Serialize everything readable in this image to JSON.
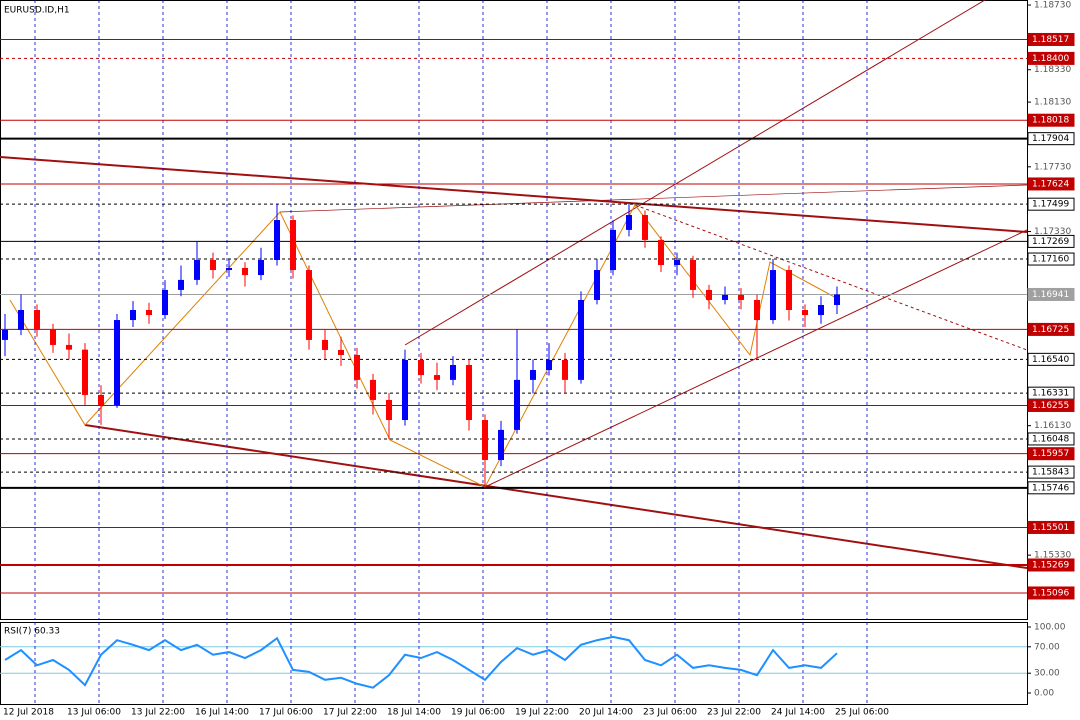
{
  "chart_data": [
    {
      "type": "candlestick",
      "title": "EURUSD.ID,H1",
      "open": [
        1.1666,
        1.16722,
        1.16845,
        1.16722,
        1.16629,
        1.166,
        1.1632,
        1.16258,
        1.16783,
        1.16845,
        1.16814,
        1.16969,
        1.17031,
        1.17154,
        1.17092,
        1.17105,
        1.17061,
        1.17154,
        1.17401,
        1.17092,
        1.1666,
        1.16598,
        1.16567,
        1.16413,
        1.16289,
        1.16165,
        1.16536,
        1.16443,
        1.16413,
        1.16505,
        1.16165,
        1.15918,
        1.16104,
        1.16413,
        1.16474,
        1.16536,
        1.16413,
        1.16907,
        1.17092,
        1.1734,
        1.17432,
        1.17278,
        1.17123,
        1.17154,
        1.16969,
        1.16907,
        1.16938,
        1.16907,
        1.16783,
        1.17092,
        1.16845,
        1.16814,
        1.16876
      ],
      "high": [
        1.1682,
        1.16941,
        1.1688,
        1.1676,
        1.167,
        1.1664,
        1.1638,
        1.1682,
        1.169,
        1.1689,
        1.1703,
        1.1712,
        1.17269,
        1.172,
        1.1716,
        1.1714,
        1.1723,
        1.17499,
        1.1743,
        1.1712,
        1.16725,
        1.1668,
        1.1661,
        1.1645,
        1.16331,
        1.166,
        1.1658,
        1.1652,
        1.1656,
        1.1654,
        1.162,
        1.1616,
        1.16725,
        1.1654,
        1.1664,
        1.1658,
        1.1696,
        1.1716,
        1.174,
        1.17499,
        1.1746,
        1.173,
        1.172,
        1.1718,
        1.17,
        1.1699,
        1.1698,
        1.1694,
        1.1716,
        1.1712,
        1.1688,
        1.1693,
        1.1699
      ],
      "low": [
        1.1656,
        1.1669,
        1.1668,
        1.1658,
        1.1654,
        1.16255,
        1.16135,
        1.1624,
        1.1674,
        1.1676,
        1.1679,
        1.1693,
        1.17,
        1.1704,
        1.1705,
        1.1699,
        1.1703,
        1.1712,
        1.1704,
        1.166,
        1.1654,
        1.165,
        1.1636,
        1.162,
        1.16048,
        1.1613,
        1.1639,
        1.1635,
        1.1638,
        1.161,
        1.15746,
        1.1588,
        1.1608,
        1.1633,
        1.1644,
        1.16331,
        1.1639,
        1.1688,
        1.1706,
        1.173,
        1.1723,
        1.1708,
        1.1706,
        1.1692,
        1.1685,
        1.1688,
        1.1685,
        1.1654,
        1.1676,
        1.1678,
        1.1674,
        1.1676,
        1.1682
      ],
      "close": [
        1.16722,
        1.16845,
        1.16722,
        1.16629,
        1.166,
        1.1632,
        1.16258,
        1.16783,
        1.16845,
        1.16814,
        1.16969,
        1.17031,
        1.17154,
        1.17092,
        1.17105,
        1.17061,
        1.17154,
        1.17401,
        1.17092,
        1.1666,
        1.16598,
        1.16567,
        1.16413,
        1.16289,
        1.16165,
        1.16536,
        1.16443,
        1.16413,
        1.16505,
        1.16165,
        1.15918,
        1.16104,
        1.16413,
        1.16474,
        1.16536,
        1.16413,
        1.16907,
        1.17092,
        1.1734,
        1.17432,
        1.17278,
        1.17123,
        1.17154,
        1.16969,
        1.16907,
        1.16938,
        1.16907,
        1.16783,
        1.17092,
        1.16845,
        1.16814,
        1.16876,
        1.16941
      ],
      "up_color": "#0000ff",
      "down_color": "#ff0000",
      "ylim": [
        1.14929,
        1.18761
      ],
      "yticks": [
        {
          "value": 1.1873,
          "label": "1.18730"
        },
        {
          "value": 1.1833,
          "label": "1.18330"
        },
        {
          "value": 1.1813,
          "label": "1.18130"
        },
        {
          "value": 1.1773,
          "label": "1.17730"
        },
        {
          "value": 1.1733,
          "label": "1.17330"
        },
        {
          "value": 1.1613,
          "label": "1.16130"
        },
        {
          "value": 1.1533,
          "label": "1.15330"
        }
      ],
      "levels": [
        {
          "value": 1.18517,
          "label": "1.18517",
          "color": "#c00000",
          "style": "solid"
        },
        {
          "value": 1.184,
          "label": "1.18400",
          "color": "#c00000",
          "style": "dashed"
        },
        {
          "value": 1.18018,
          "label": "1.18018",
          "color": "#c00000",
          "style": "solid"
        },
        {
          "value": 1.17904,
          "label": "1.17904",
          "color": "#000000",
          "style": "thick"
        },
        {
          "value": 1.17624,
          "label": "1.17624",
          "color": "#c00000",
          "style": "solid"
        },
        {
          "value": 1.17499,
          "label": "1.17499",
          "color": "#000000",
          "style": "dashed"
        },
        {
          "value": 1.17269,
          "label": "1.17269",
          "color": "#000000",
          "style": "solid"
        },
        {
          "value": 1.1716,
          "label": "1.17160",
          "color": "#000000",
          "style": "dashed"
        },
        {
          "value": 1.16941,
          "label": "1.16941",
          "color": "#a0a0a0",
          "style": "solid"
        },
        {
          "value": 1.16725,
          "label": "1.16725",
          "color": "#c00000",
          "style": "solid"
        },
        {
          "value": 1.1654,
          "label": "1.16540",
          "color": "#000000",
          "style": "dashed"
        },
        {
          "value": 1.16331,
          "label": "1.16331",
          "color": "#000000",
          "style": "dashed"
        },
        {
          "value": 1.16255,
          "label": "1.16255",
          "color": "#c00000",
          "style": "solid"
        },
        {
          "value": 1.16048,
          "label": "1.16048",
          "color": "#000000",
          "style": "dashed"
        },
        {
          "value": 1.15957,
          "label": "1.15957",
          "color": "#c00000",
          "style": "solid"
        },
        {
          "value": 1.15843,
          "label": "1.15843",
          "color": "#000000",
          "style": "dashed"
        },
        {
          "value": 1.15746,
          "label": "1.15746",
          "color": "#000000",
          "style": "thick"
        },
        {
          "value": 1.15501,
          "label": "1.15501",
          "color": "#c00000",
          "style": "solid"
        },
        {
          "value": 1.15269,
          "label": "1.15269",
          "color": "#c00000",
          "style": "thick"
        },
        {
          "value": 1.15096,
          "label": "1.15096",
          "color": "#c00000",
          "style": "solid"
        }
      ]
    },
    {
      "type": "line",
      "title": "RSI(7) 60.33",
      "categories": [
        "12 Jul 2018",
        null,
        null,
        null,
        "13 Jul 06:00",
        null,
        null,
        null,
        "13 Jul 22:00",
        null,
        null,
        null,
        "16 Jul 14:00",
        null,
        null,
        null,
        "17 Jul 06:00",
        null,
        null,
        null,
        "17 Jul 22:00",
        null,
        null,
        null,
        "18 Jul 14:00",
        null,
        null,
        null,
        "19 Jul 06:00",
        null,
        null,
        null,
        "19 Jul 22:00",
        null,
        null,
        null,
        "20 Jul 14:00",
        null,
        null,
        null,
        "23 Jul 06:00",
        null,
        null,
        null,
        "23 Jul 22:00",
        null,
        null,
        null,
        "24 Jul 14:00",
        null,
        null,
        null,
        "25 Jul 06:00"
      ],
      "values": [
        50,
        65,
        42,
        50,
        35,
        12,
        58,
        80,
        73,
        65,
        80,
        65,
        73,
        58,
        62,
        53,
        65,
        83,
        35,
        32,
        20,
        23,
        14,
        8,
        27,
        58,
        53,
        62,
        50,
        35,
        20,
        47,
        68,
        58,
        65,
        50,
        73,
        80,
        85,
        80,
        50,
        42,
        58,
        38,
        42,
        38,
        35,
        27,
        65,
        38,
        42,
        38,
        60.33
      ],
      "color": "#1e90ff",
      "ylim": [
        -18.2,
        107.6
      ],
      "yticks": [
        {
          "value": 100,
          "label": "100.00"
        },
        {
          "value": 70,
          "label": "70.00"
        },
        {
          "value": 30,
          "label": "30.00"
        },
        {
          "value": 0,
          "label": "0.00"
        }
      ],
      "levels": [
        70,
        30
      ]
    }
  ]
}
